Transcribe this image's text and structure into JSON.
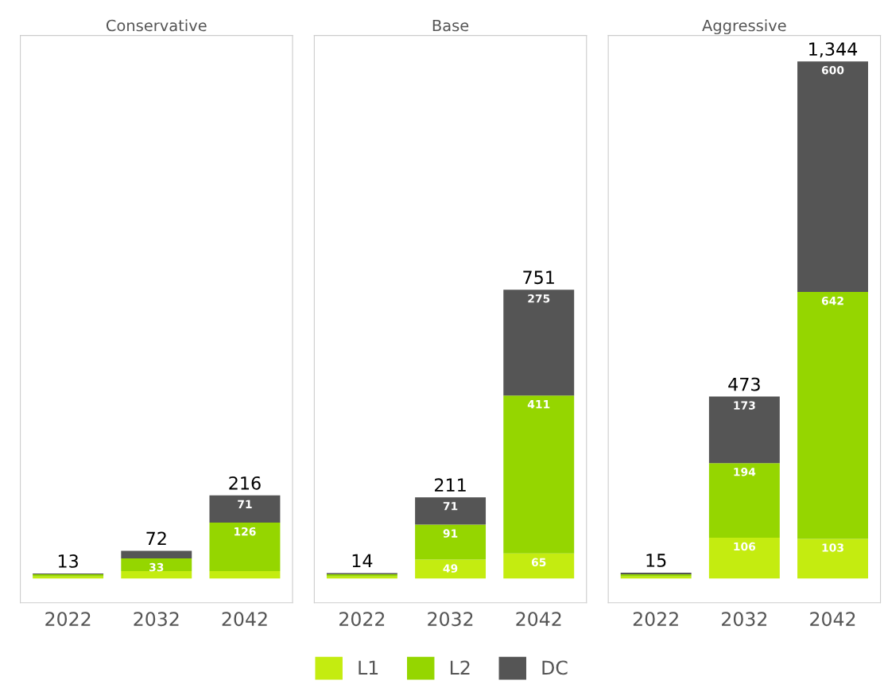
{
  "chart_data": [
    {
      "type": "bar",
      "title": "Conservative",
      "categories": [
        "2022",
        "2032",
        "2042"
      ],
      "stacked": true,
      "tick_labels": "x",
      "legend": "bottom",
      "grid": false,
      "series": [
        {
          "name": "L1",
          "color": "#c4ec10",
          "values": [
            5,
            19,
            19
          ],
          "value_labels": [
            null,
            null,
            null
          ]
        },
        {
          "name": "L2",
          "color": "#95d600",
          "values": [
            6,
            33,
            126
          ],
          "value_labels": [
            null,
            "33",
            "126"
          ]
        },
        {
          "name": "DC",
          "color": "#555555",
          "values": [
            2,
            20,
            71
          ],
          "value_labels": [
            null,
            null,
            "71"
          ]
        }
      ],
      "totals": [
        "13",
        "72",
        "216"
      ]
    },
    {
      "type": "bar",
      "title": "Base",
      "categories": [
        "2022",
        "2032",
        "2042"
      ],
      "stacked": true,
      "tick_labels": "x",
      "legend": "bottom",
      "grid": false,
      "series": [
        {
          "name": "L1",
          "color": "#c4ec10",
          "values": [
            5,
            49,
            65
          ],
          "value_labels": [
            null,
            "49",
            "65"
          ]
        },
        {
          "name": "L2",
          "color": "#95d600",
          "values": [
            6,
            91,
            411
          ],
          "value_labels": [
            null,
            "91",
            "411"
          ]
        },
        {
          "name": "DC",
          "color": "#555555",
          "values": [
            3,
            71,
            275
          ],
          "value_labels": [
            null,
            "71",
            "275"
          ]
        }
      ],
      "totals": [
        "14",
        "211",
        "751"
      ]
    },
    {
      "type": "bar",
      "title": "Aggressive",
      "categories": [
        "2022",
        "2032",
        "2042"
      ],
      "stacked": true,
      "tick_labels": "x",
      "legend": "bottom",
      "grid": false,
      "series": [
        {
          "name": "L1",
          "color": "#c4ec10",
          "values": [
            5,
            106,
            103
          ],
          "value_labels": [
            null,
            "106",
            "103"
          ]
        },
        {
          "name": "L2",
          "color": "#95d600",
          "values": [
            6,
            194,
            642
          ],
          "value_labels": [
            null,
            "194",
            "642"
          ]
        },
        {
          "name": "DC",
          "color": "#555555",
          "values": [
            4,
            173,
            600
          ],
          "value_labels": [
            null,
            "173",
            "600"
          ]
        }
      ],
      "totals": [
        "15",
        "473",
        "1,344"
      ]
    }
  ]
}
